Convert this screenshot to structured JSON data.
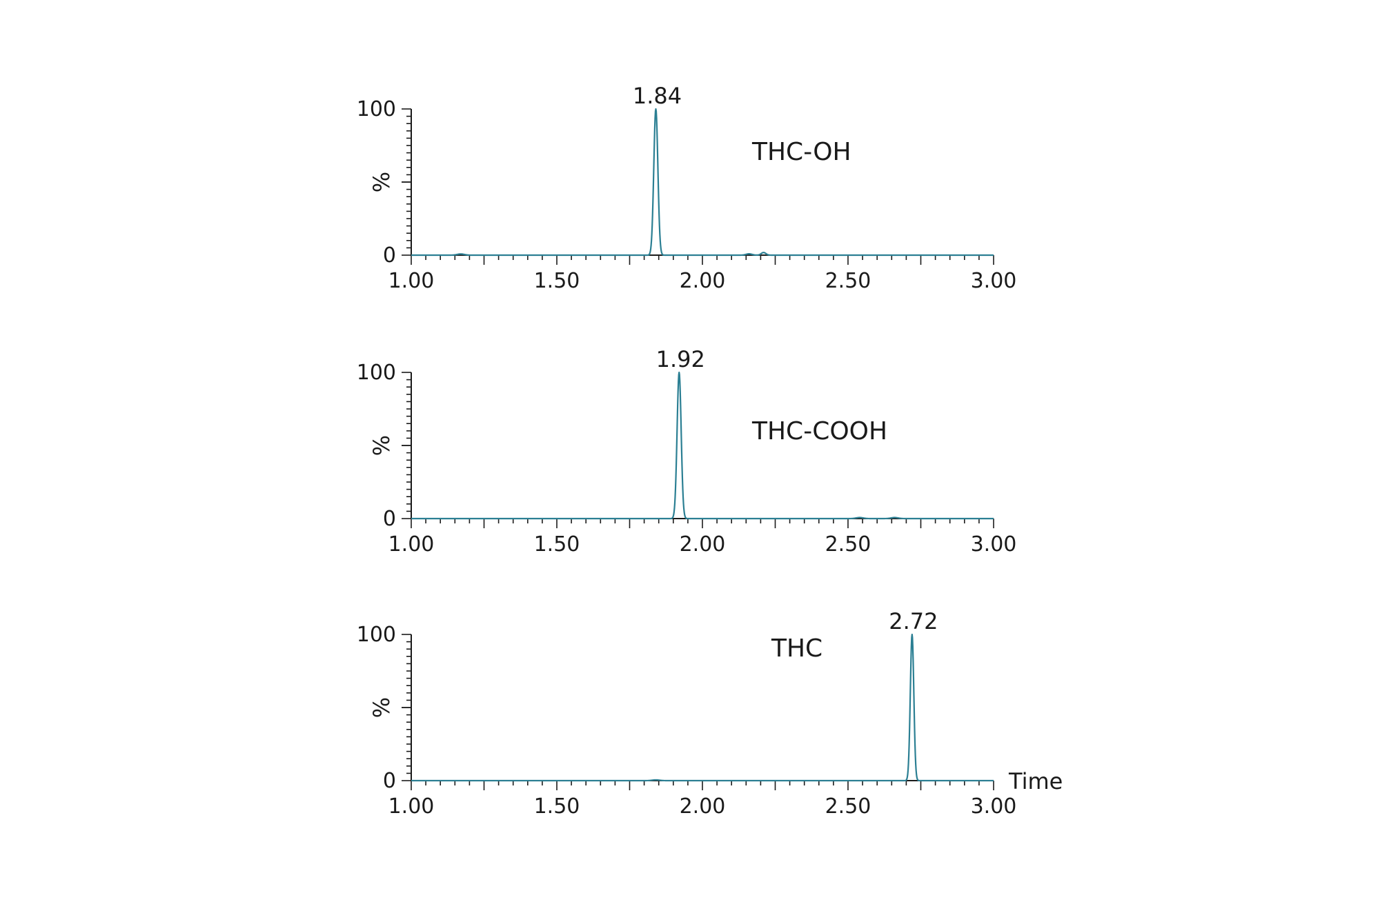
{
  "colors": {
    "trace": "#2b7f93",
    "axis": "#1a1a1a",
    "background": "#ffffff"
  },
  "chart_data": [
    {
      "type": "line",
      "title": "",
      "annotation": "THC-OH",
      "xlabel": "",
      "ylabel": "%",
      "xlim": [
        1.0,
        3.0
      ],
      "ylim": [
        0,
        100
      ],
      "x_ticks": [
        "1.00",
        "1.50",
        "2.00",
        "2.50",
        "3.00"
      ],
      "y_ticks": [
        "0",
        "100"
      ],
      "peak": {
        "x": 1.84,
        "y": 100,
        "label": "1.84"
      },
      "peak_width": 0.007,
      "minor_bumps": [
        {
          "x": 1.17,
          "y": 0.8,
          "w": 0.012
        },
        {
          "x": 2.16,
          "y": 0.9,
          "w": 0.01
        },
        {
          "x": 2.21,
          "y": 1.8,
          "w": 0.008
        }
      ]
    },
    {
      "type": "line",
      "title": "",
      "annotation": "THC-COOH",
      "xlabel": "",
      "ylabel": "%",
      "xlim": [
        1.0,
        3.0
      ],
      "ylim": [
        0,
        100
      ],
      "x_ticks": [
        "1.00",
        "1.50",
        "2.00",
        "2.50",
        "3.00"
      ],
      "y_ticks": [
        "0",
        "100"
      ],
      "peak": {
        "x": 1.92,
        "y": 100,
        "label": "1.92"
      },
      "peak_width": 0.007,
      "minor_bumps": [
        {
          "x": 2.54,
          "y": 0.7,
          "w": 0.012
        },
        {
          "x": 2.66,
          "y": 0.7,
          "w": 0.012
        }
      ]
    },
    {
      "type": "line",
      "title": "",
      "annotation": "THC",
      "xlabel": "Time",
      "ylabel": "%",
      "xlim": [
        1.0,
        3.0
      ],
      "ylim": [
        0,
        100
      ],
      "x_ticks": [
        "1.00",
        "1.50",
        "2.00",
        "2.50",
        "3.00"
      ],
      "y_ticks": [
        "0",
        "100"
      ],
      "peak": {
        "x": 2.72,
        "y": 100,
        "label": "2.72"
      },
      "peak_width": 0.006,
      "minor_bumps": [
        {
          "x": 1.84,
          "y": 0.5,
          "w": 0.012
        }
      ]
    }
  ]
}
